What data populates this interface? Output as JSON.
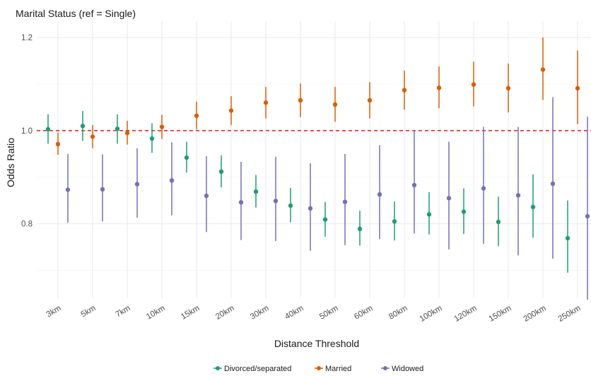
{
  "chart_data": {
    "type": "scatter",
    "title": "Marital Status (ref = Single)",
    "xlabel": "Distance Threshold",
    "ylabel": "Odds Ratio",
    "ylim": [
      0.64,
      1.235
    ],
    "yticks": [
      0.8,
      1.0,
      1.2
    ],
    "ytick_labels": [
      "0.8",
      "1.0",
      "1.2"
    ],
    "reference_line": {
      "y": 1.0,
      "style": "dashed",
      "color": "#ff0000"
    },
    "grid": true,
    "legend_position": "bottom",
    "categories": [
      "3km",
      "5km",
      "7km",
      "10km",
      "15km",
      "20km",
      "30km",
      "40km",
      "50km",
      "60km",
      "80km",
      "100km",
      "120km",
      "150km",
      "200km",
      "250km"
    ],
    "series": [
      {
        "name": "Divorced/separated",
        "color": "#1b9e77",
        "estimate": [
          1.003,
          1.01,
          1.004,
          0.983,
          0.942,
          0.912,
          0.869,
          0.839,
          0.809,
          0.789,
          0.805,
          0.82,
          0.826,
          0.804,
          0.836,
          0.769
        ],
        "lower": [
          0.972,
          0.978,
          0.972,
          0.952,
          0.91,
          0.878,
          0.835,
          0.803,
          0.772,
          0.753,
          0.764,
          0.777,
          0.778,
          0.752,
          0.77,
          0.695
        ],
        "upper": [
          1.035,
          1.042,
          1.035,
          1.016,
          0.976,
          0.947,
          0.905,
          0.877,
          0.847,
          0.828,
          0.848,
          0.868,
          0.876,
          0.858,
          0.906,
          0.85
        ]
      },
      {
        "name": "Married",
        "color": "#d95f02",
        "estimate": [
          0.971,
          0.987,
          0.995,
          1.008,
          1.032,
          1.043,
          1.06,
          1.065,
          1.056,
          1.065,
          1.087,
          1.092,
          1.099,
          1.091,
          1.131,
          1.091
        ],
        "lower": [
          0.948,
          0.962,
          0.97,
          0.982,
          1.003,
          1.012,
          1.026,
          1.029,
          1.019,
          1.026,
          1.045,
          1.048,
          1.052,
          1.039,
          1.066,
          1.014
        ],
        "upper": [
          0.996,
          1.012,
          1.021,
          1.034,
          1.062,
          1.074,
          1.094,
          1.101,
          1.094,
          1.104,
          1.129,
          1.138,
          1.148,
          1.144,
          1.2,
          1.172
        ]
      },
      {
        "name": "Widowed",
        "color": "#7570b3",
        "estimate": [
          0.873,
          0.874,
          0.885,
          0.893,
          0.86,
          0.846,
          0.849,
          0.833,
          0.847,
          0.863,
          0.883,
          0.855,
          0.876,
          0.861,
          0.886,
          0.816
        ],
        "lower": [
          0.802,
          0.805,
          0.813,
          0.818,
          0.782,
          0.765,
          0.763,
          0.742,
          0.754,
          0.767,
          0.779,
          0.745,
          0.757,
          0.732,
          0.725,
          0.637
        ],
        "upper": [
          0.95,
          0.949,
          0.962,
          0.975,
          0.945,
          0.933,
          0.944,
          0.93,
          0.95,
          0.969,
          1.0,
          0.976,
          1.008,
          1.008,
          1.072,
          1.03
        ]
      }
    ]
  }
}
